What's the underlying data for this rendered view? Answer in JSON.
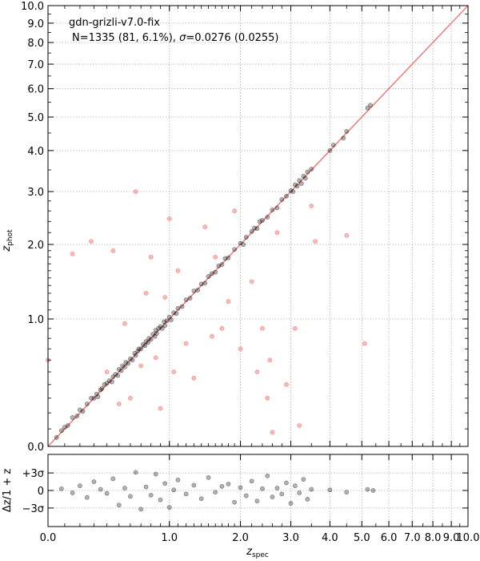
{
  "chart_data": [
    {
      "type": "scatter",
      "title": "gdn-grizli-v7.0-fix",
      "subtitle_parts": {
        "prefix": "N=1335 (81,  6.1%), ",
        "sigma_symbol": "σ",
        "suffix": "=0.0276 (0.0255)"
      },
      "xlabel_main": "z",
      "xlabel_sub": "spec",
      "ylabel_main": "z",
      "ylabel_sub": "phot",
      "scale": "log(1+z)",
      "xlim": [
        0.0,
        10.0
      ],
      "ylim": [
        0.0,
        10.0
      ],
      "grid": true,
      "x_ticks": [
        "0.0",
        "1.0",
        "2.0",
        "3.0",
        "4.0",
        "5.0",
        "6.0",
        "7.0",
        "8.0",
        "9.0",
        "10.0"
      ],
      "y_ticks": [
        "0.0",
        "1.0",
        "2.0",
        "3.0",
        "4.0",
        "5.0",
        "6.0",
        "7.0",
        "8.0",
        "9.0",
        "10.0"
      ],
      "one_to_one_color": "#f08080",
      "good_color": "#000000",
      "outlier_color": "#f08080",
      "series": [
        {
          "name": "",
          "x": [
            0.05,
            0.08,
            0.1,
            0.12,
            0.15,
            0.18,
            0.2,
            0.22,
            0.25,
            0.28,
            0.3,
            0.32,
            0.33,
            0.35,
            0.36,
            0.38,
            0.4,
            0.42,
            0.44,
            0.45,
            0.47,
            0.49,
            0.5,
            0.52,
            0.53,
            0.55,
            0.56,
            0.58,
            0.6,
            0.62,
            0.64,
            0.65,
            0.67,
            0.68,
            0.7,
            0.72,
            0.74,
            0.75,
            0.77,
            0.78,
            0.8,
            0.82,
            0.84,
            0.85,
            0.86,
            0.88,
            0.9,
            0.92,
            0.94,
            0.95,
            0.97,
            1.0,
            1.02,
            1.05,
            1.08,
            1.1,
            1.15,
            1.2,
            1.25,
            1.3,
            1.35,
            1.4,
            1.45,
            1.5,
            1.55,
            1.6,
            1.65,
            1.7,
            1.75,
            1.8,
            1.9,
            2.0,
            2.05,
            2.1,
            2.2,
            2.25,
            2.3,
            2.35,
            2.4,
            2.5,
            2.6,
            2.7,
            2.8,
            2.9,
            3.0,
            3.05,
            3.1,
            3.15,
            3.2,
            3.25,
            3.3,
            3.35,
            3.4,
            3.5,
            4.0,
            4.1,
            4.4,
            4.5,
            5.2,
            5.3
          ],
          "y": [
            0.05,
            0.09,
            0.11,
            0.12,
            0.17,
            0.18,
            0.22,
            0.21,
            0.26,
            0.3,
            0.3,
            0.33,
            0.31,
            0.36,
            0.37,
            0.4,
            0.41,
            0.43,
            0.42,
            0.46,
            0.48,
            0.47,
            0.52,
            0.51,
            0.55,
            0.54,
            0.58,
            0.57,
            0.61,
            0.6,
            0.66,
            0.64,
            0.68,
            0.7,
            0.7,
            0.74,
            0.73,
            0.77,
            0.76,
            0.8,
            0.79,
            0.84,
            0.82,
            0.88,
            0.85,
            0.9,
            0.92,
            0.9,
            0.97,
            0.93,
            0.98,
            1.02,
            0.99,
            1.07,
            1.06,
            1.12,
            1.14,
            1.22,
            1.24,
            1.33,
            1.34,
            1.42,
            1.43,
            1.52,
            1.56,
            1.58,
            1.67,
            1.69,
            1.78,
            1.79,
            1.92,
            2.02,
            2.0,
            2.12,
            2.22,
            2.28,
            2.27,
            2.4,
            2.42,
            2.48,
            2.62,
            2.66,
            2.83,
            2.9,
            3.02,
            3.0,
            3.15,
            3.12,
            3.25,
            3.18,
            3.35,
            3.3,
            3.45,
            3.52,
            4.0,
            4.15,
            4.35,
            4.55,
            5.3,
            5.4
          ]
        },
        {
          "name": "",
          "x": [
            0.0,
            0.15,
            0.28,
            0.4,
            0.45,
            0.5,
            0.55,
            0.6,
            0.65,
            0.7,
            0.75,
            0.8,
            0.85,
            0.9,
            0.95,
            1.0,
            1.05,
            1.1,
            1.2,
            1.3,
            1.45,
            1.55,
            1.6,
            1.7,
            1.8,
            1.9,
            2.0,
            2.2,
            2.3,
            2.4,
            2.5,
            2.55,
            2.6,
            2.7,
            2.9,
            3.1,
            3.2,
            3.5,
            3.6,
            4.5,
            5.1
          ],
          "y": [
            0.6,
            1.85,
            2.05,
            0.5,
            1.9,
            0.26,
            0.95,
            0.3,
            3.0,
            0.55,
            1.3,
            1.8,
            0.62,
            0.23,
            1.25,
            2.45,
            0.5,
            1.6,
            0.75,
            0.45,
            2.3,
            0.82,
            1.8,
            0.9,
            1.2,
            2.6,
            0.7,
            1.45,
            0.5,
            0.9,
            0.3,
            0.6,
            0.08,
            2.2,
            0.4,
            0.9,
            0.12,
            2.7,
            2.05,
            2.15,
            0.75
          ]
        }
      ],
      "residual_panel": {
        "ylabel": "Δz/1 + z",
        "yticks": [
          "+3σ",
          "0",
          "−3σ"
        ],
        "x": [
          0.08,
          0.15,
          0.2,
          0.25,
          0.3,
          0.35,
          0.4,
          0.45,
          0.5,
          0.55,
          0.6,
          0.65,
          0.7,
          0.75,
          0.8,
          0.85,
          0.9,
          0.95,
          1.0,
          1.05,
          1.1,
          1.2,
          1.3,
          1.4,
          1.5,
          1.6,
          1.7,
          1.8,
          1.9,
          2.0,
          2.1,
          2.2,
          2.3,
          2.4,
          2.5,
          2.6,
          2.7,
          2.8,
          2.9,
          3.0,
          3.1,
          3.2,
          3.3,
          3.4,
          3.5,
          4.0,
          4.5,
          5.2,
          5.4
        ],
        "sigma_units": [
          0.3,
          -0.4,
          0.8,
          -1.2,
          1.5,
          0.2,
          -0.5,
          2.0,
          -2.5,
          0.4,
          -1.0,
          3.1,
          -3.2,
          0.6,
          -0.8,
          2.8,
          -1.6,
          1.2,
          -2.9,
          0.1,
          1.8,
          -0.6,
          0.9,
          -1.4,
          2.2,
          -0.3,
          0.7,
          1.1,
          -2.0,
          0.5,
          -0.9,
          1.6,
          -1.8,
          0.3,
          2.5,
          -1.1,
          0.4,
          -0.6,
          1.3,
          -2.2,
          0.8,
          -0.4,
          1.9,
          -1.5,
          0.2,
          0.1,
          -0.3,
          0.2,
          0.0
        ]
      }
    }
  ]
}
